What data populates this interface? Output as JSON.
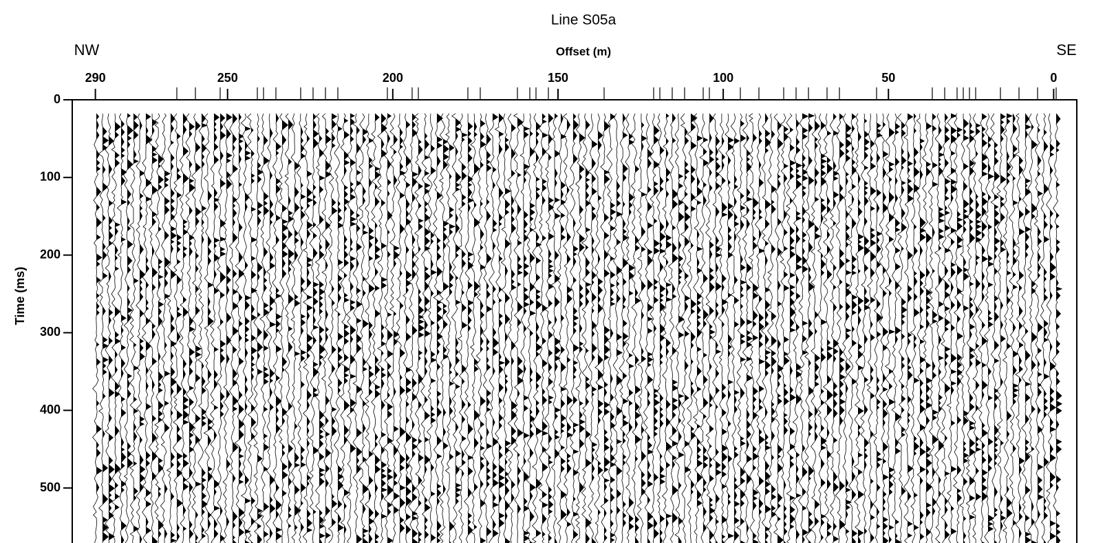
{
  "chart_data": {
    "type": "seismic",
    "title": "Line S05a",
    "x_label": "Offset (m)",
    "y_label": "Time (ms)",
    "annotations": [
      "NW",
      "SE"
    ],
    "xlim": [
      297,
      -7
    ],
    "xticks": [
      290,
      250,
      200,
      150,
      100,
      50,
      0
    ],
    "ylim": [
      0,
      585
    ],
    "yticks": [
      0,
      100,
      200,
      300,
      400,
      500
    ],
    "y_inverted": true
  }
}
